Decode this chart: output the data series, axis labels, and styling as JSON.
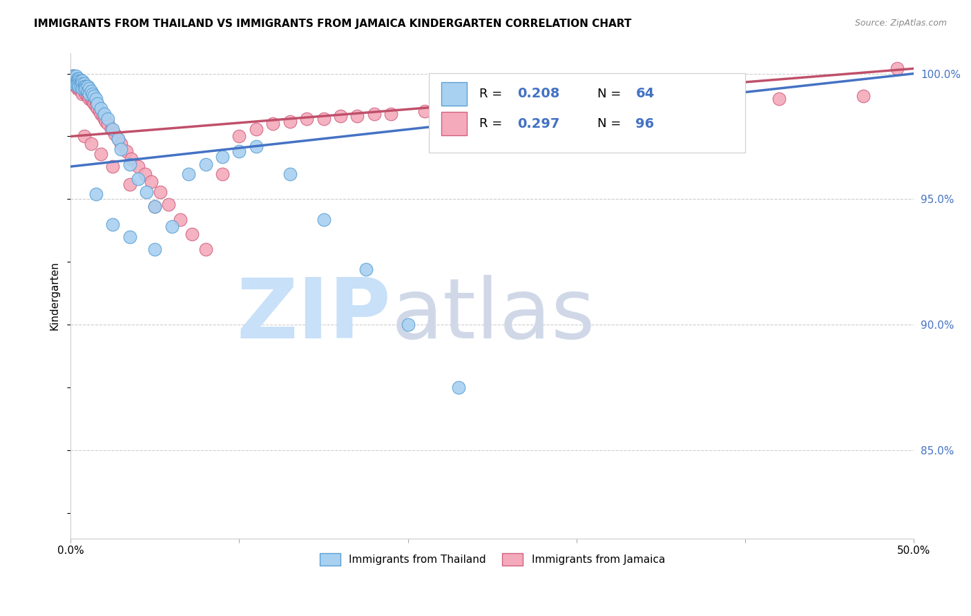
{
  "title": "IMMIGRANTS FROM THAILAND VS IMMIGRANTS FROM JAMAICA KINDERGARTEN CORRELATION CHART",
  "source": "Source: ZipAtlas.com",
  "ylabel": "Kindergarten",
  "x_min": 0.0,
  "x_max": 0.5,
  "y_min": 0.815,
  "y_max": 1.008,
  "y_tick_labels_right": [
    "100.0%",
    "95.0%",
    "90.0%",
    "85.0%"
  ],
  "y_tick_values_right": [
    1.0,
    0.95,
    0.9,
    0.85
  ],
  "thailand_color": "#A8D0F0",
  "thailand_edge_color": "#5A9FD4",
  "jamaica_color": "#F4AABB",
  "jamaica_edge_color": "#D06080",
  "thailand_R": 0.208,
  "thailand_N": 64,
  "jamaica_R": 0.297,
  "jamaica_N": 96,
  "trendline_thailand_color": "#4472C4",
  "trendline_jamaica_color": "#C0506A",
  "trendline_thailand_x0": 0.0,
  "trendline_thailand_y0": 0.963,
  "trendline_thailand_x1": 0.5,
  "trendline_thailand_y1": 1.0,
  "trendline_jamaica_x0": 0.0,
  "trendline_jamaica_y0": 0.975,
  "trendline_jamaica_x1": 0.5,
  "trendline_jamaica_y1": 1.002,
  "watermark_zip": "ZIP",
  "watermark_atlas": "atlas",
  "watermark_color_zip": "#C8E0F8",
  "watermark_color_atlas": "#D0D8E8",
  "legend_label_thailand": "Immigrants from Thailand",
  "legend_label_jamaica": "Immigrants from Jamaica",
  "th_x": [
    0.001,
    0.001,
    0.001,
    0.002,
    0.002,
    0.002,
    0.002,
    0.002,
    0.003,
    0.003,
    0.003,
    0.003,
    0.004,
    0.004,
    0.004,
    0.005,
    0.005,
    0.005,
    0.005,
    0.006,
    0.006,
    0.006,
    0.007,
    0.007,
    0.007,
    0.008,
    0.008,
    0.008,
    0.009,
    0.009,
    0.01,
    0.01,
    0.011,
    0.011,
    0.012,
    0.013,
    0.014,
    0.015,
    0.016,
    0.018,
    0.02,
    0.022,
    0.025,
    0.028,
    0.03,
    0.035,
    0.04,
    0.045,
    0.05,
    0.06,
    0.07,
    0.08,
    0.09,
    0.1,
    0.11,
    0.13,
    0.15,
    0.175,
    0.2,
    0.23,
    0.015,
    0.025,
    0.035,
    0.05
  ],
  "th_y": [
    0.998,
    0.997,
    0.999,
    0.998,
    0.997,
    0.999,
    0.998,
    0.996,
    0.998,
    0.997,
    0.999,
    0.996,
    0.998,
    0.997,
    0.996,
    0.998,
    0.997,
    0.996,
    0.995,
    0.997,
    0.996,
    0.995,
    0.997,
    0.996,
    0.994,
    0.996,
    0.995,
    0.994,
    0.995,
    0.994,
    0.995,
    0.993,
    0.994,
    0.992,
    0.993,
    0.992,
    0.991,
    0.99,
    0.988,
    0.986,
    0.984,
    0.982,
    0.978,
    0.974,
    0.97,
    0.964,
    0.958,
    0.953,
    0.947,
    0.939,
    0.96,
    0.964,
    0.967,
    0.969,
    0.971,
    0.96,
    0.942,
    0.922,
    0.9,
    0.875,
    0.952,
    0.94,
    0.935,
    0.93
  ],
  "ja_x": [
    0.001,
    0.001,
    0.001,
    0.002,
    0.002,
    0.002,
    0.002,
    0.002,
    0.003,
    0.003,
    0.003,
    0.003,
    0.003,
    0.004,
    0.004,
    0.004,
    0.004,
    0.005,
    0.005,
    0.005,
    0.005,
    0.006,
    0.006,
    0.006,
    0.006,
    0.007,
    0.007,
    0.007,
    0.007,
    0.008,
    0.008,
    0.008,
    0.009,
    0.009,
    0.009,
    0.01,
    0.01,
    0.01,
    0.011,
    0.011,
    0.011,
    0.012,
    0.012,
    0.013,
    0.013,
    0.014,
    0.014,
    0.015,
    0.015,
    0.016,
    0.017,
    0.018,
    0.019,
    0.02,
    0.021,
    0.022,
    0.024,
    0.026,
    0.028,
    0.03,
    0.033,
    0.036,
    0.04,
    0.044,
    0.048,
    0.053,
    0.058,
    0.065,
    0.072,
    0.08,
    0.09,
    0.1,
    0.11,
    0.12,
    0.13,
    0.14,
    0.15,
    0.16,
    0.17,
    0.18,
    0.19,
    0.21,
    0.23,
    0.25,
    0.28,
    0.32,
    0.37,
    0.42,
    0.47,
    0.49,
    0.008,
    0.012,
    0.018,
    0.025,
    0.035,
    0.05
  ],
  "ja_y": [
    0.999,
    0.997,
    0.998,
    0.998,
    0.997,
    0.999,
    0.996,
    0.997,
    0.998,
    0.997,
    0.996,
    0.995,
    0.998,
    0.997,
    0.996,
    0.995,
    0.994,
    0.997,
    0.996,
    0.995,
    0.994,
    0.996,
    0.995,
    0.994,
    0.993,
    0.995,
    0.994,
    0.993,
    0.992,
    0.995,
    0.994,
    0.993,
    0.994,
    0.993,
    0.992,
    0.993,
    0.992,
    0.991,
    0.992,
    0.991,
    0.99,
    0.991,
    0.99,
    0.99,
    0.989,
    0.989,
    0.988,
    0.988,
    0.987,
    0.986,
    0.985,
    0.984,
    0.983,
    0.982,
    0.981,
    0.98,
    0.978,
    0.976,
    0.974,
    0.972,
    0.969,
    0.966,
    0.963,
    0.96,
    0.957,
    0.953,
    0.948,
    0.942,
    0.936,
    0.93,
    0.96,
    0.975,
    0.978,
    0.98,
    0.981,
    0.982,
    0.982,
    0.983,
    0.983,
    0.984,
    0.984,
    0.985,
    0.985,
    0.986,
    0.987,
    0.988,
    0.989,
    0.99,
    0.991,
    1.002,
    0.975,
    0.972,
    0.968,
    0.963,
    0.956,
    0.947
  ]
}
